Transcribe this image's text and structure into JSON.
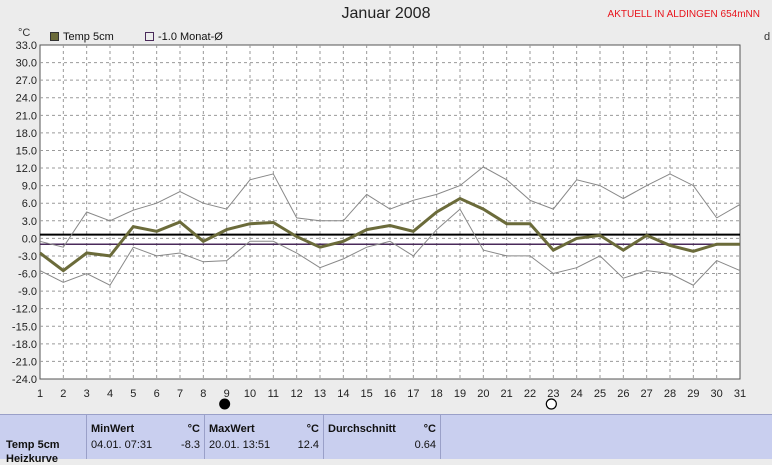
{
  "header": {
    "title": "Januar 2008",
    "station": "AKTUELL IN ALDINGEN 654mNN",
    "unit": "°C",
    "right_mark": "d"
  },
  "legend": {
    "items": [
      {
        "label": "Temp 5cm",
        "color": "#6b6b3a"
      },
      {
        "label": "-1.0 Monat-Ø",
        "color": "#4a2a5a"
      }
    ]
  },
  "chart_data": {
    "type": "line",
    "title": "Januar 2008",
    "ylabel": "°C",
    "x": [
      1,
      2,
      3,
      4,
      5,
      6,
      7,
      8,
      9,
      10,
      11,
      12,
      13,
      14,
      15,
      16,
      17,
      18,
      19,
      20,
      21,
      22,
      23,
      24,
      25,
      26,
      27,
      28,
      29,
      30,
      31
    ],
    "ylim": [
      -24,
      33
    ],
    "yticks": [
      33.0,
      30.0,
      27.0,
      24.0,
      21.0,
      18.0,
      15.0,
      12.0,
      9.0,
      6.0,
      3.0,
      0.0,
      -3.0,
      -6.0,
      -9.0,
      -12.0,
      -15.0,
      -18.0,
      -21.0,
      -24.0
    ],
    "ytick_labels": [
      "33.0",
      "30.0",
      "27.0",
      "24.0",
      "21.0",
      "18.0",
      "15.0",
      "12.0",
      "9.0",
      "6.0",
      "3.0",
      "0.0",
      "-3.0",
      "-6.0",
      "-9.0",
      "-12.0",
      "-15.0",
      "-18.0",
      "-21.0",
      "-24.0"
    ],
    "grid": true,
    "series": [
      {
        "name": "Temp 5cm",
        "color": "#6b6b3a",
        "values": [
          -2.5,
          -5.5,
          -2.5,
          -3.0,
          2.0,
          1.2,
          2.8,
          -0.5,
          1.5,
          2.5,
          2.7,
          0.3,
          -1.5,
          -0.5,
          1.5,
          2.2,
          1.2,
          4.5,
          6.8,
          5.0,
          2.5,
          2.5,
          -2.0,
          0.0,
          0.5,
          -2.0,
          0.5,
          -1.2,
          -2.2,
          -1.0,
          -1.0
        ]
      },
      {
        "color": "#888888",
        "values": [
          -5.5,
          -7.5,
          -6.0,
          -8.0,
          -1.5,
          -3.0,
          -2.5,
          -4.0,
          -3.8,
          -0.5,
          -0.5,
          -2.5,
          -5.0,
          -3.5,
          -1.5,
          -0.5,
          -3.0,
          1.5,
          5.0,
          -2.0,
          -3.0,
          -3.0,
          -6.0,
          -5.0,
          -3.0,
          -6.8,
          -5.5,
          -6.0,
          -8.0,
          -3.8,
          -5.5
        ]
      },
      {
        "color": "#888888",
        "values": [
          -0.5,
          -1.5,
          4.5,
          3.0,
          4.8,
          6.0,
          8.0,
          6.0,
          5.0,
          10.0,
          11.0,
          3.5,
          3.0,
          3.0,
          7.5,
          5.0,
          6.5,
          7.5,
          9.0,
          12.2,
          10.0,
          6.5,
          5.0,
          10.0,
          9.0,
          6.8,
          9.0,
          11.0,
          9.0,
          3.5,
          5.8
        ]
      }
    ],
    "reference_lines": [
      {
        "value": 0.64,
        "color": "#000000"
      },
      {
        "value": -1.0,
        "color": "#4a2a5a"
      }
    ],
    "day_markers": [
      {
        "day": 9,
        "symbol": "new-moon"
      },
      {
        "day": 23,
        "symbol": "full-moon"
      }
    ]
  },
  "stats": {
    "series_label": "Temp 5cm",
    "series_label2": "Heizkurve",
    "min": {
      "label": "MinWert",
      "unit": "°C",
      "date": "04.01.  07:31",
      "value": "-8.3"
    },
    "max": {
      "label": "MaxWert",
      "unit": "°C",
      "date": "20.01.  13:51",
      "value": "12.4"
    },
    "avg": {
      "label": "Durchschnitt",
      "unit": "°C",
      "value": "0.64"
    }
  }
}
